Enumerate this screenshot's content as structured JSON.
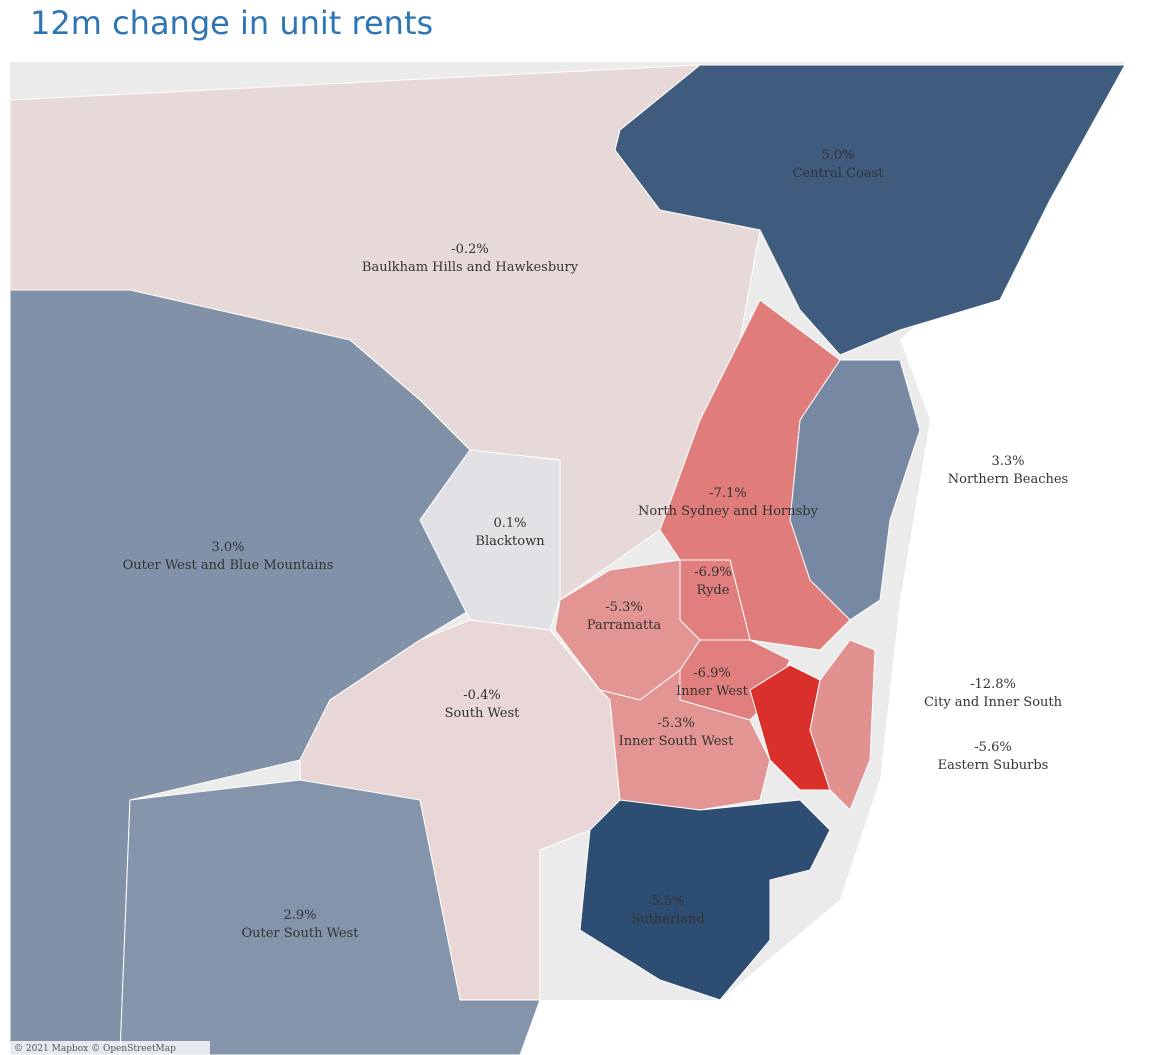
{
  "title": "12m change in unit rents",
  "attribution": "© 2021 Mapbox © OpenStreetMap",
  "map": {
    "regions": [
      {
        "name": "Baulkham Hills and Hawkesbury",
        "value": -0.2,
        "value_label": "-0.2%"
      },
      {
        "name": "Central Coast",
        "value": 5.0,
        "value_label": "5.0%"
      },
      {
        "name": "Outer West and Blue Mountains",
        "value": 3.0,
        "value_label": "3.0%"
      },
      {
        "name": "Blacktown",
        "value": 0.1,
        "value_label": "0.1%"
      },
      {
        "name": "South West",
        "value": -0.4,
        "value_label": "-0.4%"
      },
      {
        "name": "Outer South West",
        "value": 2.9,
        "value_label": "2.9%"
      },
      {
        "name": "Northern Beaches",
        "value": 3.3,
        "value_label": "3.3%"
      },
      {
        "name": "North Sydney and Hornsby",
        "value": -7.1,
        "value_label": "-7.1%"
      },
      {
        "name": "Ryde",
        "value": -6.9,
        "value_label": "-6.9%"
      },
      {
        "name": "Parramatta",
        "value": -5.3,
        "value_label": "-5.3%"
      },
      {
        "name": "Inner West",
        "value": -6.9,
        "value_label": "-6.9%"
      },
      {
        "name": "Inner South West",
        "value": -5.3,
        "value_label": "-5.3%"
      },
      {
        "name": "City and Inner South",
        "value": -12.8,
        "value_label": "-12.8%"
      },
      {
        "name": "Eastern Suburbs",
        "value": -5.6,
        "value_label": "-5.6%"
      },
      {
        "name": "Sutherland",
        "value": 5.5,
        "value_label": "5.5%"
      }
    ]
  }
}
